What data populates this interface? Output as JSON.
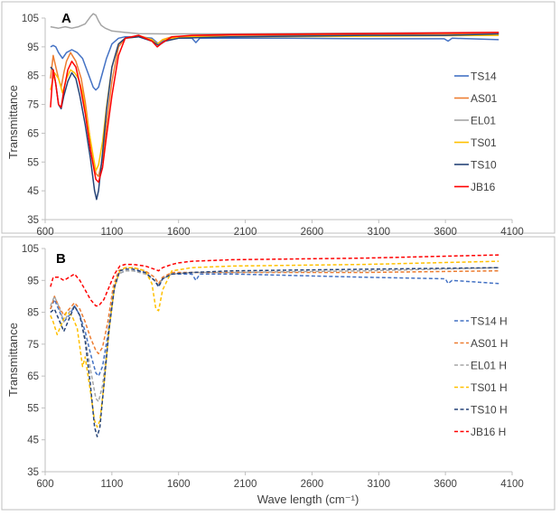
{
  "chart_data": [
    {
      "type": "line",
      "panel_label": "A",
      "ylabel": "Transmittance",
      "xlabel": "",
      "xlim": [
        600,
        4100
      ],
      "ylim": [
        35,
        105
      ],
      "xticks": [
        600,
        1100,
        1600,
        2100,
        2600,
        3100,
        3600,
        4100
      ],
      "yticks": [
        35,
        45,
        55,
        65,
        75,
        85,
        95,
        105
      ],
      "legend_position": "right",
      "series": [
        {
          "name": "TS14",
          "color": "#4472c4",
          "dash": "solid",
          "x": [
            640,
            660,
            680,
            700,
            730,
            760,
            800,
            840,
            880,
            920,
            960,
            980,
            1000,
            1030,
            1060,
            1100,
            1150,
            1200,
            1300,
            1400,
            1450,
            1500,
            1600,
            1700,
            1730,
            1760,
            1900,
            2400,
            3000,
            3590,
            3620,
            3650,
            4000
          ],
          "y": [
            95,
            95.5,
            95,
            93,
            91,
            93,
            94,
            93,
            91,
            86,
            81,
            80,
            81,
            86,
            91,
            96,
            98,
            98.5,
            98.5,
            98,
            96,
            97.5,
            98,
            98,
            96.5,
            98,
            98,
            98,
            97.8,
            97.8,
            97,
            98,
            97.5
          ]
        },
        {
          "name": "AS01",
          "color": "#ed7d31",
          "dash": "solid",
          "x": [
            640,
            660,
            680,
            700,
            720,
            740,
            760,
            790,
            830,
            870,
            900,
            940,
            980,
            1000,
            1030,
            1060,
            1100,
            1150,
            1200,
            1300,
            1400,
            1440,
            1480,
            1550,
            1700,
            2000,
            3000,
            4000
          ],
          "y": [
            84,
            92,
            88,
            84,
            81,
            86,
            90,
            93,
            90,
            84,
            76,
            62,
            51,
            50,
            56,
            68,
            83,
            95,
            98,
            99,
            97.5,
            96,
            97.5,
            98.5,
            98.8,
            99,
            99.2,
            99.5
          ]
        },
        {
          "name": "EL01",
          "color": "#a5a5a5",
          "dash": "solid",
          "x": [
            640,
            700,
            750,
            800,
            850,
            900,
            940,
            960,
            980,
            1000,
            1020,
            1050,
            1100,
            1200,
            1300,
            1500,
            2000,
            3000,
            4000
          ],
          "y": [
            102,
            101.5,
            102,
            101.5,
            102,
            103,
            105.5,
            106.5,
            106,
            104,
            102.5,
            101.5,
            100.5,
            100,
            99.6,
            99.5,
            99.5,
            99.8,
            100
          ]
        },
        {
          "name": "TS01",
          "color": "#ffc000",
          "dash": "solid",
          "x": [
            640,
            670,
            700,
            730,
            760,
            790,
            820,
            850,
            880,
            920,
            960,
            980,
            1000,
            1030,
            1060,
            1100,
            1150,
            1200,
            1300,
            1400,
            1440,
            1480,
            1550,
            1700,
            2000,
            3000,
            4000
          ],
          "y": [
            80,
            86,
            84,
            79,
            84,
            87,
            86,
            84,
            79,
            68,
            57,
            52,
            54,
            62,
            74,
            88,
            96,
            98,
            98.5,
            97.5,
            96,
            97.5,
            98,
            98.5,
            98.5,
            98.7,
            99
          ]
        },
        {
          "name": "TS10",
          "color": "#264478",
          "dash": "solid",
          "x": [
            640,
            660,
            680,
            700,
            720,
            740,
            770,
            800,
            830,
            860,
            900,
            940,
            970,
            985,
            1000,
            1030,
            1060,
            1100,
            1150,
            1200,
            1300,
            1400,
            1450,
            1500,
            1600,
            2000,
            3000,
            3600,
            4000
          ],
          "y": [
            88,
            87,
            82,
            75,
            73.5,
            78,
            83,
            86,
            84,
            78,
            68,
            56,
            45,
            42,
            45,
            58,
            73,
            88,
            96,
            98,
            98.5,
            97,
            95.5,
            97,
            98,
            98.5,
            99,
            99,
            99.5
          ]
        },
        {
          "name": "JB16",
          "color": "#ff0000",
          "dash": "solid",
          "x": [
            640,
            660,
            680,
            700,
            720,
            740,
            770,
            800,
            830,
            860,
            900,
            940,
            980,
            1000,
            1030,
            1060,
            1100,
            1150,
            1200,
            1300,
            1400,
            1440,
            1480,
            1550,
            1700,
            2000,
            3000,
            4000
          ],
          "y": [
            74,
            87,
            82,
            75,
            74,
            80,
            87,
            90,
            88,
            82,
            72,
            59,
            49,
            48,
            53,
            64,
            78,
            92,
            98,
            99,
            97,
            95,
            96.5,
            98.5,
            99,
            99.3,
            99.6,
            100
          ]
        }
      ]
    },
    {
      "type": "line",
      "panel_label": "B",
      "ylabel": "Transmittance",
      "xlabel": "Wave length (cm⁻¹)",
      "xlim": [
        600,
        4100
      ],
      "ylim": [
        35,
        105
      ],
      "xticks": [
        600,
        1100,
        1600,
        2100,
        2600,
        3100,
        3600,
        4100
      ],
      "yticks": [
        35,
        45,
        55,
        65,
        75,
        85,
        95,
        105
      ],
      "legend_position": "right",
      "series": [
        {
          "name": "TS14 H",
          "color": "#4472c4",
          "dash": "dashed",
          "x": [
            640,
            670,
            700,
            740,
            780,
            820,
            860,
            900,
            940,
            980,
            1000,
            1030,
            1070,
            1110,
            1150,
            1200,
            1260,
            1350,
            1420,
            1450,
            1480,
            1550,
            1700,
            1730,
            1760,
            2000,
            2500,
            3000,
            3600,
            3620,
            3650,
            4000
          ],
          "y": [
            86,
            89,
            86,
            82,
            84,
            87,
            84,
            79,
            72,
            66,
            65,
            68,
            78,
            91,
            97,
            98,
            98,
            97.5,
            95,
            93,
            95.5,
            97,
            97,
            95,
            97,
            97,
            96.5,
            96,
            95.5,
            94,
            95,
            94
          ]
        },
        {
          "name": "AS01 H",
          "color": "#ed7d31",
          "dash": "dashed",
          "x": [
            640,
            670,
            700,
            740,
            780,
            820,
            860,
            900,
            940,
            980,
            1000,
            1030,
            1070,
            1110,
            1150,
            1200,
            1260,
            1350,
            1420,
            1450,
            1480,
            1550,
            1700,
            2000,
            3000,
            4000
          ],
          "y": [
            86,
            90,
            87,
            84,
            86,
            88,
            86,
            82,
            77,
            73,
            72,
            74,
            82,
            93,
            98,
            99,
            99,
            98,
            96,
            94,
            96,
            97.5,
            97.5,
            97.5,
            97.5,
            98
          ]
        },
        {
          "name": "EL01 H",
          "color": "#a5a5a5",
          "dash": "dashed",
          "x": [
            640,
            670,
            700,
            740,
            780,
            820,
            860,
            900,
            940,
            980,
            1000,
            1030,
            1070,
            1110,
            1150,
            1200,
            1260,
            1350,
            1420,
            1450,
            1480,
            1550,
            1700,
            2000,
            3000,
            4000
          ],
          "y": [
            87,
            90,
            87,
            82,
            85,
            87,
            84,
            77,
            67,
            58,
            57,
            62,
            76,
            91,
            97,
            98,
            98,
            97,
            95,
            93.5,
            95.5,
            97,
            97.5,
            97.5,
            98,
            99
          ]
        },
        {
          "name": "TS01 H",
          "color": "#ffc000",
          "dash": "dashed",
          "x": [
            640,
            660,
            690,
            720,
            760,
            800,
            840,
            880,
            900,
            940,
            970,
            990,
            1010,
            1040,
            1080,
            1120,
            1160,
            1200,
            1260,
            1350,
            1400,
            1430,
            1450,
            1480,
            1550,
            1700,
            2000,
            3000,
            4000
          ],
          "y": [
            84,
            82,
            78,
            81,
            85,
            84,
            80,
            68,
            71,
            60,
            51,
            49,
            51,
            62,
            80,
            93,
            98,
            99,
            99,
            98,
            94,
            86,
            85.5,
            92,
            98,
            99,
            99.5,
            100,
            101
          ]
        },
        {
          "name": "TS10 H",
          "color": "#264478",
          "dash": "dashed",
          "x": [
            640,
            670,
            700,
            740,
            780,
            820,
            860,
            900,
            940,
            970,
            990,
            1010,
            1040,
            1080,
            1120,
            1160,
            1200,
            1260,
            1350,
            1420,
            1450,
            1480,
            1550,
            1700,
            2000,
            3000,
            4000
          ],
          "y": [
            85,
            86,
            83,
            79,
            83,
            87,
            84,
            76,
            62,
            49,
            46,
            49,
            62,
            80,
            93,
            98,
            98.5,
            98.5,
            97.5,
            95,
            93,
            95.5,
            97,
            97.5,
            98,
            98.5,
            99
          ]
        },
        {
          "name": "JB16 H",
          "color": "#ff0000",
          "dash": "dashed",
          "x": [
            640,
            660,
            700,
            740,
            780,
            820,
            860,
            900,
            940,
            980,
            1000,
            1040,
            1080,
            1120,
            1160,
            1200,
            1260,
            1350,
            1420,
            1450,
            1480,
            1550,
            1600,
            1700,
            2000,
            3000,
            4000
          ],
          "y": [
            93,
            96,
            96,
            95,
            96,
            97,
            95,
            92,
            89,
            87,
            87,
            89,
            93,
            97,
            99.5,
            100,
            100,
            99.5,
            98.5,
            98,
            99,
            100,
            100.5,
            101,
            101.5,
            102,
            103
          ]
        }
      ]
    }
  ]
}
